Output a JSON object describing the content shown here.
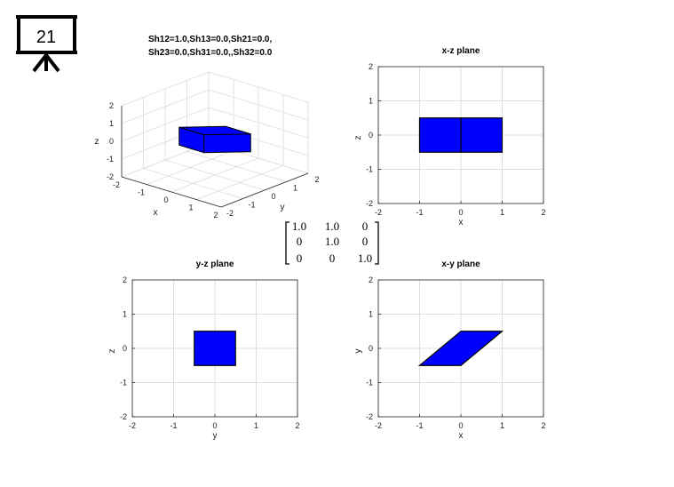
{
  "slide_number": "21",
  "title3d": {
    "line1": "Sh12=1.0,Sh13=0.0,Sh21=0.0,",
    "line2": "Sh23=0.0,Sh31=0.0,,Sh32=0.0"
  },
  "matrix": [
    [
      "1.0",
      "1.0",
      "0"
    ],
    [
      "0",
      "1.0",
      "0"
    ],
    [
      "0",
      "0",
      "1.0"
    ]
  ],
  "highlight_color": "#cc0000",
  "shape_color": "#0000ff",
  "chart_data": [
    {
      "type": "3d-box",
      "xlabel": "x",
      "ylabel": "y",
      "zlabel": "z",
      "xticks": [
        "-2",
        "-1",
        "0",
        "1",
        "2"
      ],
      "yticks": [
        "-2",
        "-1",
        "0",
        "1",
        "2"
      ],
      "zticks": [
        "-2",
        "-1",
        "0",
        "1",
        "2"
      ],
      "xlim": [
        -2,
        2
      ],
      "ylim": [
        -2,
        2
      ],
      "zlim": [
        -2,
        2
      ],
      "vertices": [
        [
          -1,
          -0.5,
          -0.5
        ],
        [
          0,
          -0.5,
          -0.5
        ],
        [
          1,
          0.5,
          -0.5
        ],
        [
          0,
          0.5,
          -0.5
        ],
        [
          -1,
          -0.5,
          0.5
        ],
        [
          0,
          -0.5,
          0.5
        ],
        [
          1,
          0.5,
          0.5
        ],
        [
          0,
          0.5,
          0.5
        ]
      ],
      "grid": true
    },
    {
      "type": "polygon",
      "title": "x-z plane",
      "xlabel": "x",
      "ylabel": "z",
      "xlim": [
        -2,
        2
      ],
      "ylim": [
        -2,
        2
      ],
      "xticks": [
        "-2",
        "-1",
        "0",
        "1",
        "2"
      ],
      "yticks": [
        "-2",
        "-1",
        "0",
        "1",
        "2"
      ],
      "polygons": [
        [
          [
            -1,
            -0.5
          ],
          [
            0,
            -0.5
          ],
          [
            0,
            0.5
          ],
          [
            -1,
            0.5
          ]
        ],
        [
          [
            0,
            -0.5
          ],
          [
            1,
            -0.5
          ],
          [
            1,
            0.5
          ],
          [
            0,
            0.5
          ]
        ]
      ],
      "grid": true
    },
    {
      "type": "polygon",
      "title": "y-z plane",
      "xlabel": "y",
      "ylabel": "z",
      "xlim": [
        -2,
        2
      ],
      "ylim": [
        -2,
        2
      ],
      "xticks": [
        "-2",
        "-1",
        "0",
        "1",
        "2"
      ],
      "yticks": [
        "-2",
        "-1",
        "0",
        "1",
        "2"
      ],
      "polygons": [
        [
          [
            -0.5,
            -0.5
          ],
          [
            0.5,
            -0.5
          ],
          [
            0.5,
            0.5
          ],
          [
            -0.5,
            0.5
          ]
        ]
      ],
      "grid": true
    },
    {
      "type": "polygon",
      "title": "x-y plane",
      "xlabel": "x",
      "ylabel": "y",
      "xlim": [
        -2,
        2
      ],
      "ylim": [
        -2,
        2
      ],
      "xticks": [
        "-2",
        "-1",
        "0",
        "1",
        "2"
      ],
      "yticks": [
        "-2",
        "-1",
        "0",
        "1",
        "2"
      ],
      "polygons": [
        [
          [
            -1,
            -0.5
          ],
          [
            0,
            -0.5
          ],
          [
            1,
            0.5
          ],
          [
            0,
            0.5
          ]
        ]
      ],
      "grid": true
    }
  ]
}
